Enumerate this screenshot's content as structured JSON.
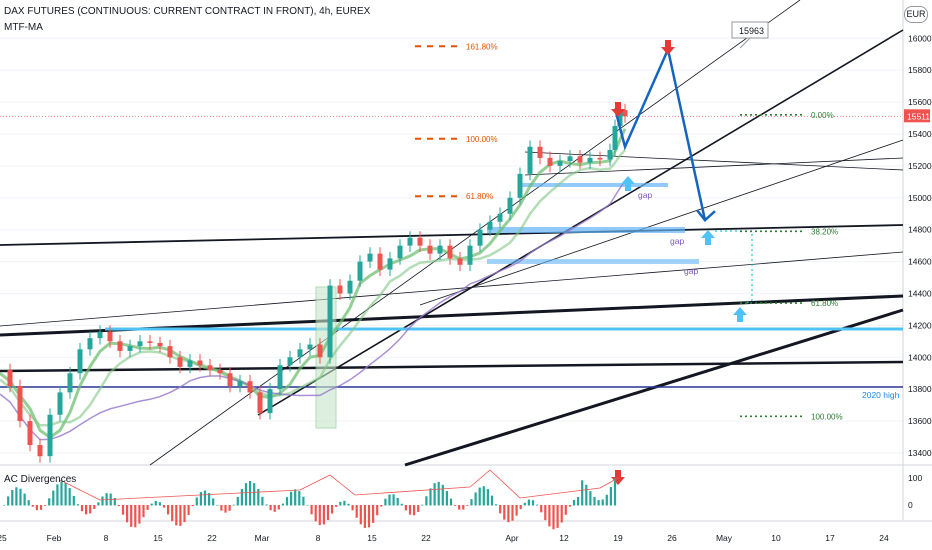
{
  "header": {
    "title": "DAX FUTURES (CONTINUOUS: CURRENT CONTRACT IN FRONT), 4h, EUREX",
    "indicator": "MTF-MA",
    "currency": "EUR"
  },
  "indicator_panel": {
    "title": "AC Divergences",
    "ticks": [
      "100",
      "0"
    ]
  },
  "chart_data": {
    "type": "line",
    "title": "DAX FUTURES (CONTINUOUS: CURRENT CONTRACT IN FRONT), 4h, EUREX",
    "y_ticks": [
      13400,
      13600,
      13800,
      14000,
      14200,
      14400,
      14600,
      14800,
      15000,
      15200,
      15400,
      15600,
      15800,
      16000
    ],
    "ylim": [
      13330,
      16280
    ],
    "x_ticks": [
      "25",
      "Feb",
      "8",
      "15",
      "22",
      "Mar",
      "8",
      "15",
      "22",
      "Apr",
      "12",
      "19",
      "26",
      "May",
      "10",
      "17",
      "24"
    ],
    "price": {
      "name": "DAX FUTURES",
      "x": [
        0,
        10,
        20,
        30,
        40,
        50,
        60,
        70,
        80,
        90,
        100,
        110,
        120,
        130,
        140,
        150,
        160,
        170,
        180,
        190,
        200,
        210,
        220,
        230,
        240,
        250,
        260,
        270,
        280,
        290,
        300,
        310,
        320,
        330,
        340,
        350,
        360,
        370,
        380,
        390,
        400,
        410,
        420,
        430,
        440,
        450,
        460,
        470,
        480,
        490,
        500,
        510,
        520,
        530,
        540,
        550,
        560,
        570,
        580,
        590,
        600,
        610,
        615,
        620,
        625
      ],
      "values": [
        13920,
        13820,
        13600,
        13450,
        13380,
        13640,
        13780,
        13900,
        14050,
        14120,
        14160,
        14100,
        14040,
        14070,
        14100,
        14090,
        14070,
        14000,
        13940,
        13980,
        13950,
        13920,
        13900,
        13820,
        13850,
        13780,
        13650,
        13800,
        13950,
        14000,
        14050,
        14080,
        14000,
        14450,
        14400,
        14480,
        14600,
        14650,
        14550,
        14620,
        14700,
        14750,
        14700,
        14650,
        14700,
        14620,
        14580,
        14700,
        14800,
        14850,
        14900,
        15000,
        15150,
        15320,
        15250,
        15200,
        15230,
        15260,
        15220,
        15250,
        15240,
        15300,
        15450,
        15550,
        15511
      ]
    },
    "projection": [
      [
        615,
        15560
      ],
      [
        625,
        15320
      ],
      [
        668,
        15930
      ],
      [
        705,
        14860
      ]
    ],
    "fib_levels": [
      {
        "label": "161.80%",
        "price": 15950,
        "color": "#e65100"
      },
      {
        "label": "100.00%",
        "price": 15370,
        "color": "#e65100"
      },
      {
        "label": "61.80%",
        "price": 15010,
        "color": "#e65100"
      },
      {
        "label": "0.00%",
        "price": 15520,
        "color": "#2e7d32"
      },
      {
        "label": "38.20%",
        "price": 14790,
        "color": "#2e7d32"
      },
      {
        "label": "61.80%",
        "price": 14340,
        "color": "#2e7d32"
      },
      {
        "label": "100.00%",
        "price": 13630,
        "color": "#2e7d32"
      }
    ],
    "gap_labels": [
      "gap",
      "gap",
      "gap"
    ],
    "level_labels": {
      "high_2020": "2020 high"
    },
    "callout": "15963",
    "last_price": "15511"
  }
}
